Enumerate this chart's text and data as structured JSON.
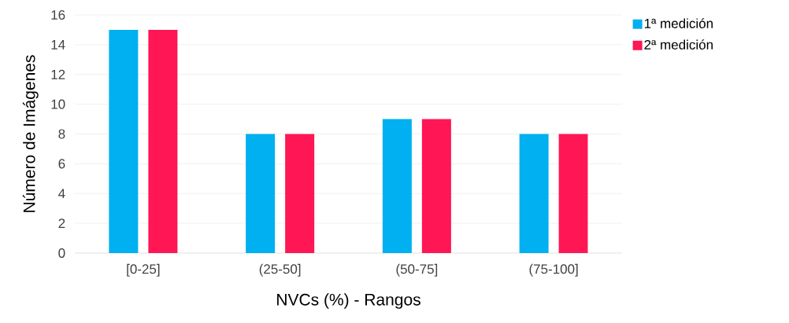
{
  "chart_data": {
    "type": "bar",
    "xlabel": "NVCs (%) - Rangos",
    "ylabel": "Número de Imágenes",
    "categories": [
      "[0-25]",
      "(25-50]",
      "(50-75]",
      "(75-100]"
    ],
    "series": [
      {
        "name": "1ª medición",
        "color": "#00b0f0",
        "values": [
          15,
          8,
          9,
          8
        ]
      },
      {
        "name": "2ª medición",
        "color": "#ff1654",
        "values": [
          15,
          8,
          9,
          8
        ]
      }
    ],
    "ylim": [
      0,
      16
    ],
    "yticks": [
      0,
      2,
      4,
      6,
      8,
      10,
      12,
      14,
      16
    ],
    "grid": "y",
    "legend": "top right"
  }
}
